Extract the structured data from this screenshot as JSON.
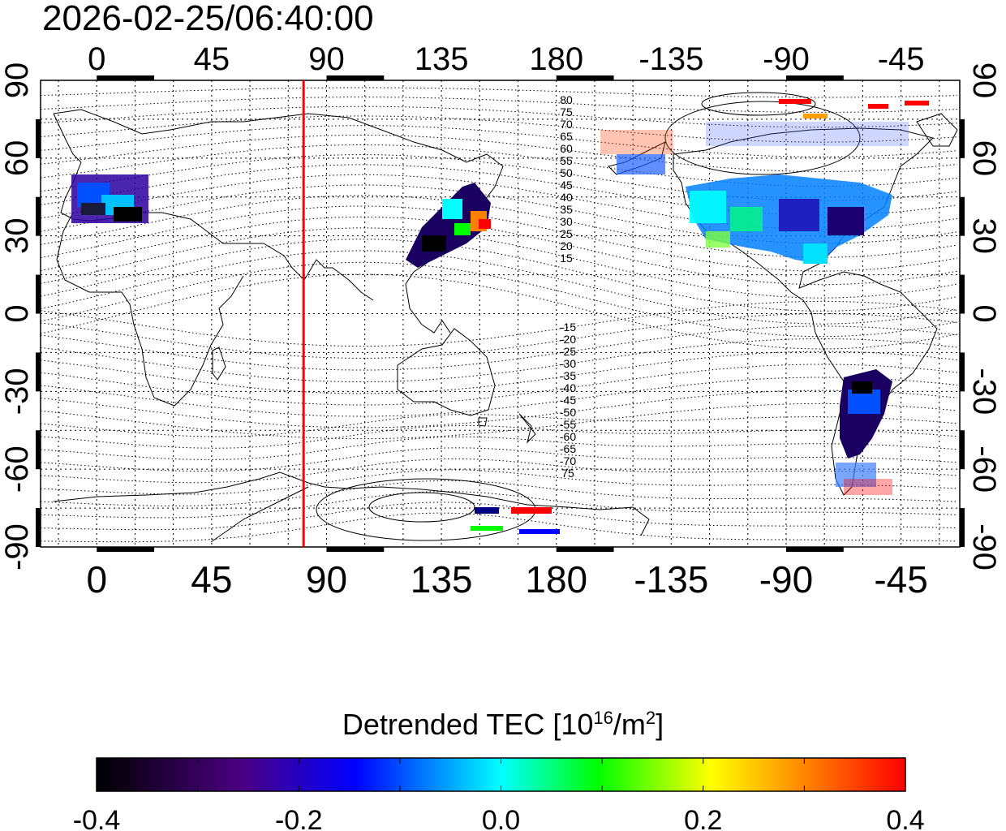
{
  "timestamp": "2026-02-25/06:40:00",
  "x_ticks": [
    "0",
    "45",
    "90",
    "135",
    "180",
    "-135",
    "-90",
    "-45"
  ],
  "y_ticks": [
    "90",
    "60",
    "30",
    "0",
    "-30",
    "-60",
    "-90"
  ],
  "contour_labels_north": [
    "80",
    "75",
    "70",
    "65",
    "60",
    "55",
    "50",
    "45",
    "40",
    "35",
    "30",
    "25",
    "20",
    "15"
  ],
  "contour_labels_south": [
    "-15",
    "-20",
    "-25",
    "-30",
    "-35",
    "-40",
    "-45",
    "-50",
    "-55",
    "-60",
    "-65",
    "-70",
    "75"
  ],
  "marker_line_longitude": 81,
  "colorbar": {
    "title_main": "Detrended TEC  [10",
    "title_exp1": "16",
    "title_mid": "/m",
    "title_exp2": "2",
    "title_end": "]",
    "min": -0.4,
    "max": 0.4,
    "tick_labels": [
      "-0.4",
      "-0.2",
      "0.0",
      "0.2",
      "0.4"
    ]
  },
  "colors": {
    "marker_line": "#ff0000",
    "colormap": [
      "#000000",
      "#4b0082",
      "#0000ff",
      "#00ffff",
      "#00ff00",
      "#ffff00",
      "#ff8000",
      "#ff0000"
    ]
  }
}
